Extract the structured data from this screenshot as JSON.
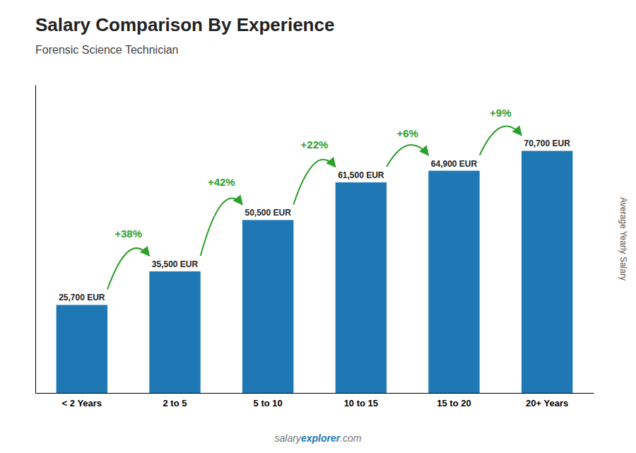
{
  "chart_data": {
    "type": "bar",
    "title": "Salary Comparison By Experience",
    "subtitle": "Forensic Science Technician",
    "ylabel": "Average Yearly Salary",
    "categories": [
      "< 2 Years",
      "2 to 5",
      "5 to 10",
      "10 to 15",
      "15 to 20",
      "20+ Years"
    ],
    "values": [
      25700,
      35500,
      50500,
      61500,
      64900,
      70700
    ],
    "value_labels": [
      "25,700 EUR",
      "35,500 EUR",
      "50,500 EUR",
      "61,500 EUR",
      "64,900 EUR",
      "70,700 EUR"
    ],
    "data_labels": true,
    "annotations": [
      "+38%",
      "+42%",
      "+22%",
      "+6%",
      "+9%"
    ],
    "footer": [
      "salary",
      "explorer",
      ".com"
    ],
    "ylim": [
      0,
      90000
    ],
    "tick_labels": "x",
    "grid": false
  }
}
